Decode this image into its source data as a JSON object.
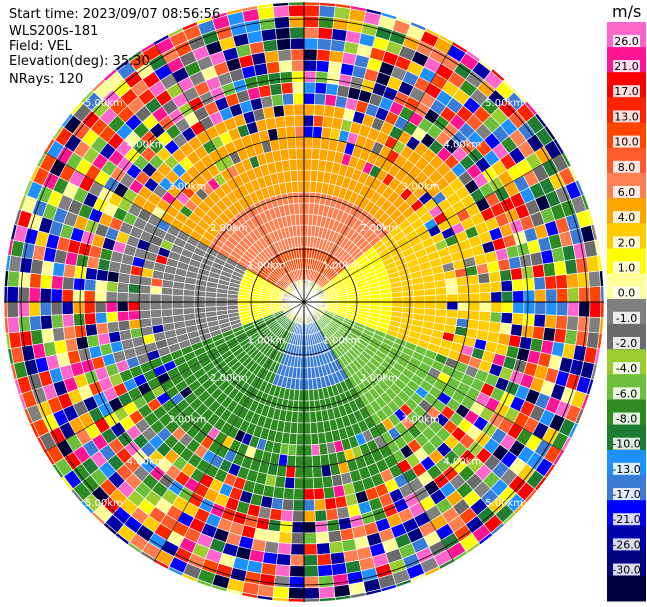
{
  "header": {
    "start_time": "Start time: 2023/09/07 08:56:56",
    "instrument": "WLS200s-181",
    "field": "Field: VEL",
    "elevation": "Elevation(deg): 35.30",
    "nrays": "NRays: 120"
  },
  "colorbar": {
    "unit": "m/s",
    "ticks": [
      "26.0",
      "21.0",
      "17.0",
      "13.0",
      "10.0",
      "8.0",
      "6.0",
      "4.0",
      "2.0",
      "1.0",
      "0.0",
      "-1.0",
      "-2.0",
      "-4.0",
      "-6.0",
      "-8.0",
      "-10.0",
      "-13.0",
      "-17.0",
      "-21.0",
      "-26.0",
      "-30.0"
    ],
    "colors": [
      "#ff66cc",
      "#ff1493",
      "#ff0000",
      "#ff2200",
      "#ff4400",
      "#ff5a2a",
      "#ff7f50",
      "#ffa500",
      "#ffcc00",
      "#ffff00",
      "#ffff99",
      "#808080",
      "#6b6b6b",
      "#9acd32",
      "#6bbf3a",
      "#2e8b22",
      "#1e7d32",
      "#1e90ff",
      "#3a7bd5",
      "#0000ff",
      "#0000aa",
      "#000080",
      "#000040"
    ]
  },
  "range_labels": [
    "1.00km",
    "2.00km",
    "3.00km",
    "4.00km",
    "5.00km"
  ],
  "rings_km": [
    1,
    2,
    3,
    4,
    5
  ],
  "nrays": 120,
  "max_range_km": 5.0
}
